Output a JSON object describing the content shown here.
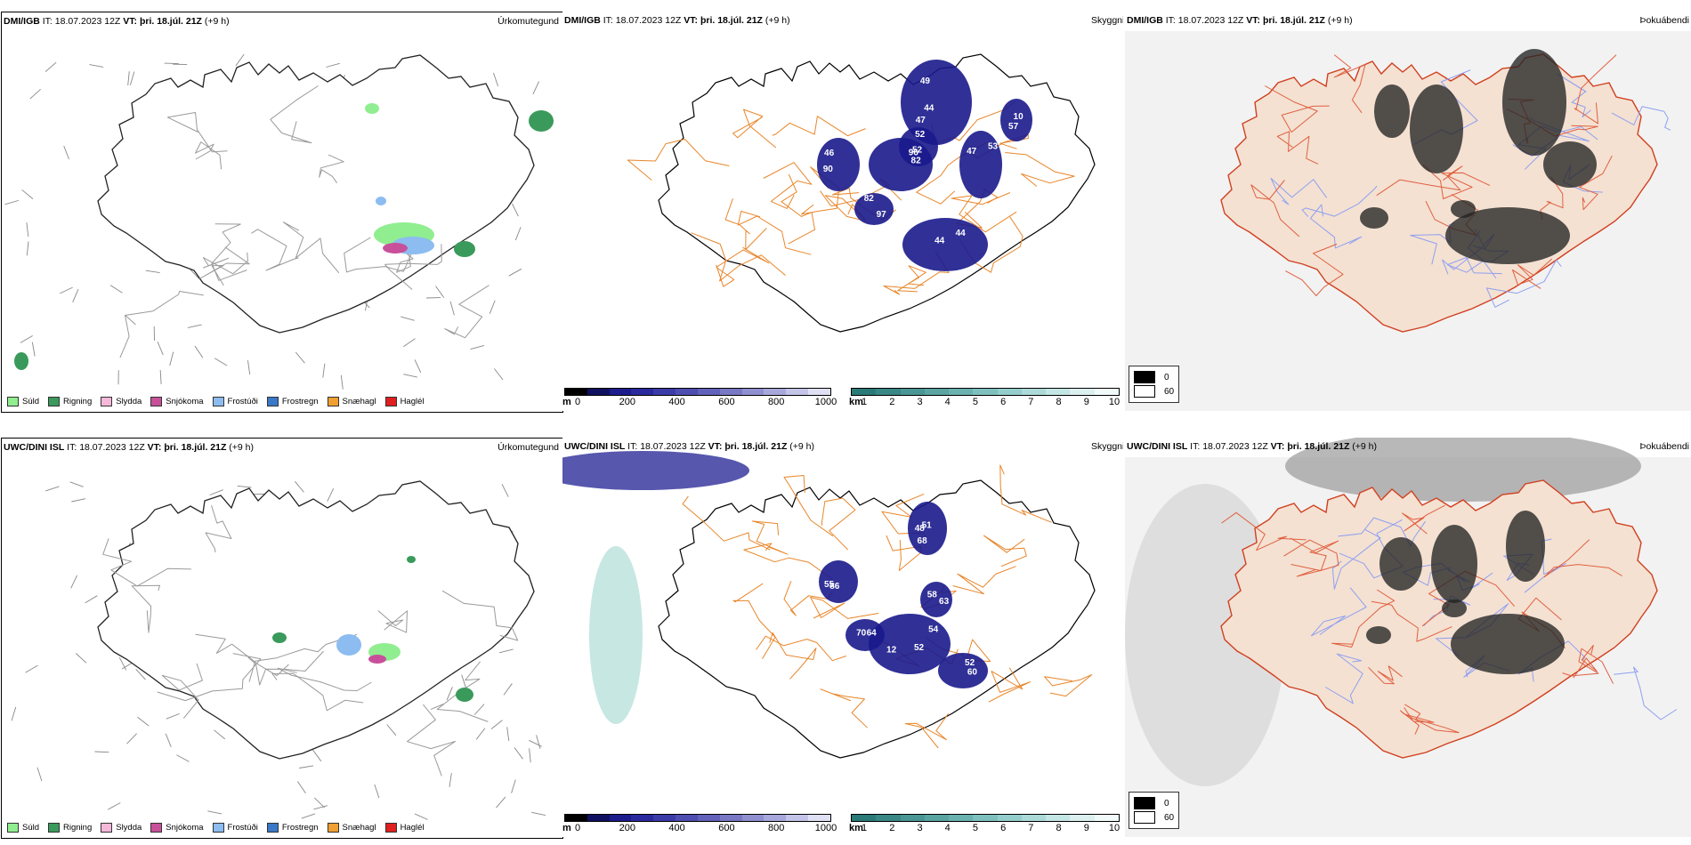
{
  "rows": [
    {
      "model": "DMI/IGB",
      "it_label": "IT:",
      "it_value": "18.07.2023 12Z",
      "vt_label": "VT:",
      "vt_value": "þri. 18.júl. 21Z",
      "lead": "(+9 h)",
      "visibility_labels": [
        "49",
        "82",
        "44",
        "97",
        "90",
        "47",
        "10",
        "96",
        "44",
        "52",
        "44",
        "82",
        "46",
        "53",
        "57",
        "52",
        "47"
      ],
      "cloud_top_extra": false
    },
    {
      "model": "UWC/DINI ISL",
      "it_label": "IT:",
      "it_value": "18.07.2023 12Z",
      "vt_label": "VT:",
      "vt_value": "þri. 18.júl. 21Z",
      "lead": "(+9 h)",
      "visibility_labels": [
        "68",
        "52",
        "70",
        "86",
        "63",
        "52",
        "48",
        "54",
        "64",
        "55",
        "58",
        "60",
        "51",
        "12"
      ],
      "cloud_top_extra": true
    }
  ],
  "titles": {
    "precip": "Úrkomutegund",
    "visibility": "Skyggni",
    "fog": "Þokuábendi"
  },
  "precip_legend": [
    {
      "label": "Súld",
      "color": "#90ee90"
    },
    {
      "label": "Rigning",
      "color": "#3a9a5b"
    },
    {
      "label": "Slydda",
      "color": "#f5b8d8"
    },
    {
      "label": "Snjókoma",
      "color": "#c8509a"
    },
    {
      "label": "Frostúði",
      "color": "#8cbcf0"
    },
    {
      "label": "Frostregn",
      "color": "#3a78c8"
    },
    {
      "label": "Snæhagl",
      "color": "#f0a030"
    },
    {
      "label": "Haglél",
      "color": "#e02020"
    }
  ],
  "cloud_scale": {
    "unit": "m",
    "ticks": [
      "0",
      "200",
      "400",
      "600",
      "800",
      "1000"
    ],
    "colors": [
      "#000000",
      "#101060",
      "#1c1c8c",
      "#2a2a9e",
      "#3b3ba8",
      "#4e4eb0",
      "#6262ba",
      "#7878c4",
      "#9090d0",
      "#a8a8dc",
      "#c4c4e8",
      "#e0e0f4"
    ]
  },
  "vis_scale": {
    "unit": "km",
    "ticks": [
      "1",
      "2",
      "3",
      "4",
      "5",
      "6",
      "7",
      "8",
      "9",
      "10"
    ],
    "colors": [
      "#2a7a78",
      "#3a8886",
      "#4a9694",
      "#5aa4a2",
      "#6ab2b0",
      "#7ec0be",
      "#94cecc",
      "#acdad8",
      "#c4e6e4",
      "#dcf0ef",
      "#f2faf9"
    ]
  },
  "fog_legend": [
    {
      "label": "0",
      "color": "#000000"
    },
    {
      "label": "60",
      "color": "#ffffff"
    }
  ]
}
